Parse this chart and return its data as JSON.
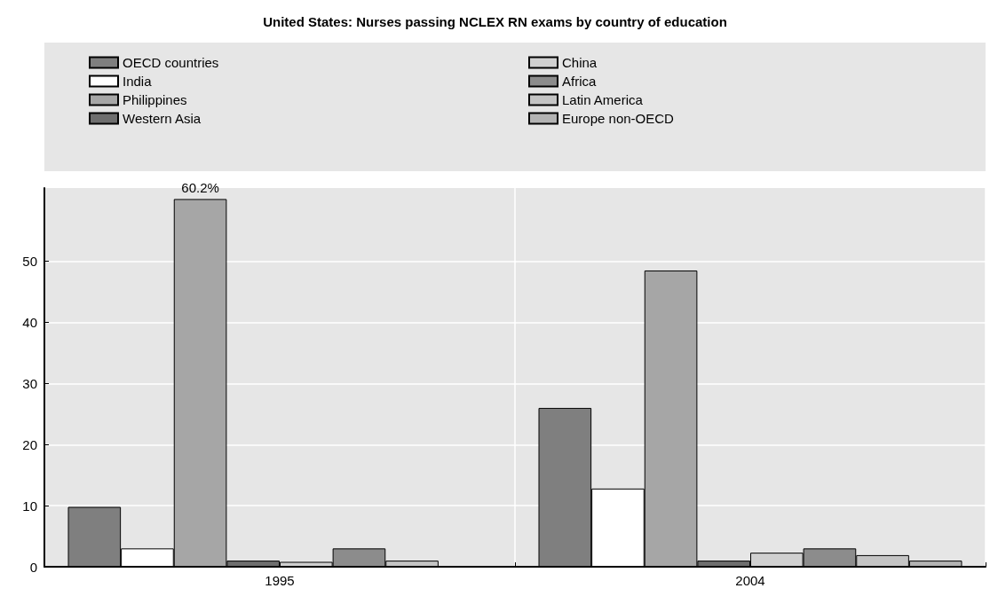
{
  "chart_data": {
    "type": "bar",
    "title": "United States: Nurses passing NCLEX RN exams by country of education",
    "categories": [
      "1995",
      "2004"
    ],
    "series": [
      {
        "name": "OECD countries",
        "color": "#7f7f7f",
        "values": [
          9.8,
          26.0
        ]
      },
      {
        "name": "India",
        "color": "#ffffff",
        "values": [
          3.0,
          12.8
        ]
      },
      {
        "name": "Philippines",
        "color": "#a6a6a6",
        "values": [
          60.2,
          48.5
        ],
        "value_labels": [
          "60.2%",
          null
        ]
      },
      {
        "name": "Western Asia",
        "color": "#6e6e6e",
        "values": [
          1.0,
          1.0
        ]
      },
      {
        "name": "China",
        "color": "#d0d0d0",
        "values": [
          0.8,
          2.3
        ]
      },
      {
        "name": "Africa",
        "color": "#8c8c8c",
        "values": [
          3.0,
          3.0
        ]
      },
      {
        "name": "Latin America",
        "color": "#c4c4c4",
        "values": [
          1.0,
          1.9
        ]
      },
      {
        "name": "Europe non-OECD",
        "color": "#b3b3b3",
        "values": [
          null,
          1.0
        ]
      }
    ],
    "ylim": [
      0,
      62
    ],
    "yticks": [
      0,
      10,
      20,
      30,
      40,
      50
    ],
    "grid": true,
    "legend": "top"
  }
}
